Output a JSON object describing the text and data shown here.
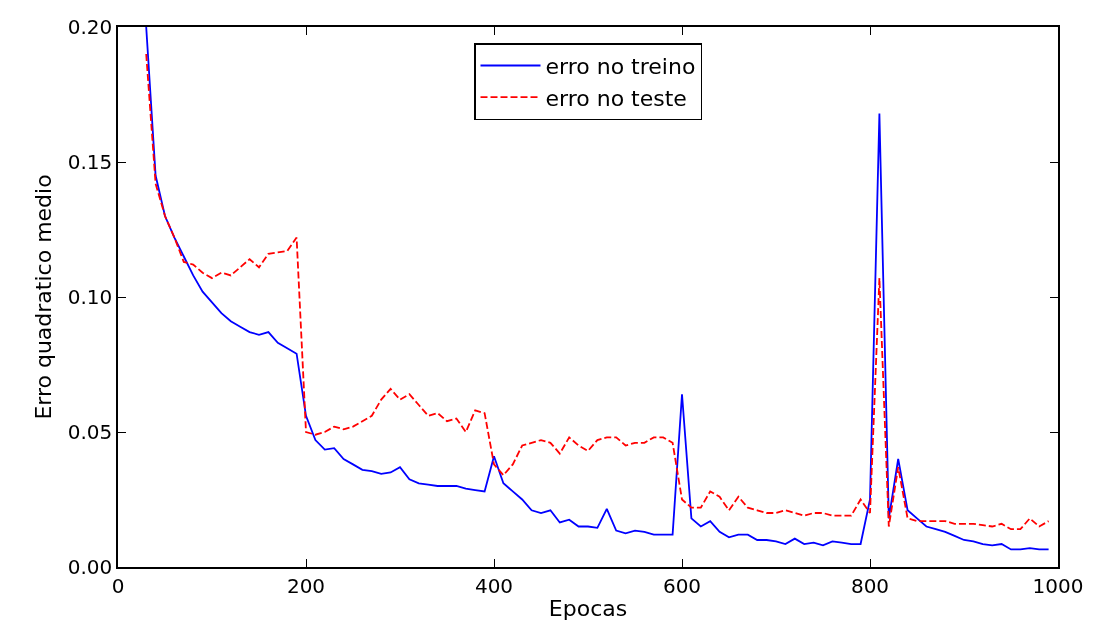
{
  "chart_data": {
    "type": "line",
    "xlabel": "Epocas",
    "ylabel": "Erro quadratico medio",
    "x": [
      30,
      40,
      50,
      60,
      70,
      80,
      90,
      100,
      110,
      120,
      130,
      140,
      150,
      160,
      170,
      180,
      190,
      200,
      210,
      220,
      230,
      240,
      250,
      260,
      270,
      280,
      290,
      300,
      310,
      320,
      330,
      340,
      350,
      360,
      370,
      380,
      390,
      400,
      410,
      420,
      430,
      440,
      450,
      460,
      470,
      480,
      490,
      500,
      510,
      520,
      530,
      540,
      550,
      560,
      570,
      580,
      590,
      600,
      610,
      620,
      630,
      640,
      650,
      660,
      670,
      680,
      690,
      700,
      710,
      720,
      730,
      740,
      750,
      760,
      770,
      780,
      790,
      800,
      810,
      820,
      830,
      840,
      850,
      860,
      870,
      880,
      890,
      900,
      910,
      920,
      930,
      940,
      950,
      960,
      970,
      980,
      990
    ],
    "series": [
      {
        "name": "erro no treino",
        "color": "#0000ff",
        "line_style": "solid",
        "values": [
          0.2,
          0.145,
          0.13,
          0.122,
          0.115,
          0.108,
          0.102,
          0.098,
          0.094,
          0.091,
          0.089,
          0.087,
          0.086,
          0.087,
          0.083,
          0.081,
          0.079,
          0.056,
          0.047,
          0.0435,
          0.044,
          0.04,
          0.038,
          0.036,
          0.0355,
          0.0345,
          0.035,
          0.037,
          0.0325,
          0.031,
          0.0305,
          0.03,
          0.03,
          0.03,
          0.029,
          0.0285,
          0.028,
          0.041,
          0.031,
          0.028,
          0.025,
          0.021,
          0.02,
          0.021,
          0.0165,
          0.0175,
          0.015,
          0.015,
          0.0145,
          0.0215,
          0.0135,
          0.0125,
          0.0135,
          0.013,
          0.012,
          0.012,
          0.012,
          0.064,
          0.018,
          0.015,
          0.017,
          0.013,
          0.011,
          0.012,
          0.012,
          0.01,
          0.01,
          0.0095,
          0.0085,
          0.0105,
          0.0085,
          0.009,
          0.008,
          0.0095,
          0.009,
          0.0085,
          0.0085,
          0.025,
          0.168,
          0.018,
          0.04,
          0.021,
          0.018,
          0.015,
          0.014,
          0.013,
          0.0115,
          0.01,
          0.0095,
          0.0085,
          0.008,
          0.0085,
          0.0065,
          0.0065,
          0.007,
          0.0065,
          0.0065
        ]
      },
      {
        "name": "erro no teste",
        "color": "#ff0000",
        "line_style": "dashed",
        "values": [
          0.19,
          0.142,
          0.13,
          0.122,
          0.113,
          0.112,
          0.109,
          0.107,
          0.109,
          0.108,
          0.111,
          0.114,
          0.111,
          0.116,
          0.1165,
          0.117,
          0.122,
          0.05,
          0.049,
          0.05,
          0.052,
          0.051,
          0.052,
          0.054,
          0.056,
          0.062,
          0.066,
          0.062,
          0.064,
          0.06,
          0.056,
          0.057,
          0.054,
          0.055,
          0.05,
          0.058,
          0.057,
          0.038,
          0.034,
          0.038,
          0.045,
          0.046,
          0.047,
          0.046,
          0.042,
          0.048,
          0.045,
          0.043,
          0.047,
          0.048,
          0.048,
          0.045,
          0.046,
          0.046,
          0.048,
          0.048,
          0.046,
          0.025,
          0.022,
          0.022,
          0.028,
          0.026,
          0.021,
          0.026,
          0.022,
          0.021,
          0.02,
          0.02,
          0.021,
          0.02,
          0.019,
          0.02,
          0.02,
          0.019,
          0.019,
          0.019,
          0.025,
          0.02,
          0.107,
          0.015,
          0.037,
          0.018,
          0.017,
          0.017,
          0.017,
          0.017,
          0.016,
          0.016,
          0.016,
          0.0155,
          0.015,
          0.016,
          0.014,
          0.014,
          0.018,
          0.015,
          0.017
        ]
      }
    ],
    "xlim": [
      0,
      1000
    ],
    "xticks": [
      0,
      200,
      400,
      600,
      800,
      1000
    ],
    "ylim": [
      0,
      0.2
    ],
    "yticks": [
      {
        "value": 0,
        "label": "0.00"
      },
      {
        "value": 0.05,
        "label": "0.05"
      },
      {
        "value": 0.1,
        "label": "0.10"
      },
      {
        "value": 0.15,
        "label": "0.15"
      },
      {
        "value": 0.2,
        "label": "0.20"
      }
    ],
    "grid": false,
    "legend": "top",
    "marker": "none"
  }
}
